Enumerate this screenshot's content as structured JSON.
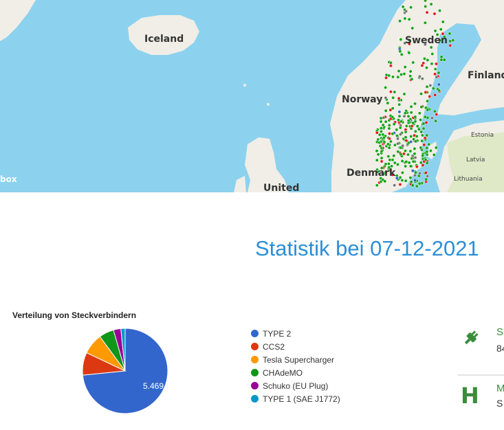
{
  "map": {
    "labels": {
      "iceland": "Iceland",
      "norway": "Norway",
      "sweden": "Sweden",
      "finland": "Finland",
      "estonia": "Estonia",
      "latvia": "Latvia",
      "lithuania": "Lithuania",
      "denmark": "Denmark",
      "united": "United"
    },
    "attribution": "box",
    "colors": {
      "water": "#8cd2ee",
      "land": "#f0eee6",
      "land_green": "#dfe9c7"
    },
    "marker_colors": {
      "green": "#17a319",
      "red": "#e11d1d",
      "gray": "#777777",
      "blue": "#3366cc"
    }
  },
  "statistics": {
    "title": "Statistik bei 07-12-2021"
  },
  "chart_data": {
    "type": "pie",
    "title": "Verteilung von Steckverbindern",
    "slices": [
      {
        "name": "TYPE 2",
        "value": 5469,
        "color": "#3366cc"
      },
      {
        "name": "CCS2",
        "value": 640,
        "color": "#dc3912"
      },
      {
        "name": "Tesla Supercharger",
        "value": 590,
        "color": "#ff9900"
      },
      {
        "name": "CHAdeMO",
        "value": 420,
        "color": "#109618"
      },
      {
        "name": "Schuko (EU Plug)",
        "value": 210,
        "color": "#990099"
      },
      {
        "name": "TYPE 1 (SAE J1772)",
        "value": 120,
        "color": "#0099c6"
      }
    ],
    "data_labels": [
      "5.469"
    ],
    "legend_position": "right"
  },
  "cards": [
    {
      "icon": "plug-icon",
      "title": "S",
      "value": "84"
    },
    {
      "icon": "hydrogen-icon",
      "icon_text": "H",
      "title": "M",
      "value": "S"
    }
  ]
}
